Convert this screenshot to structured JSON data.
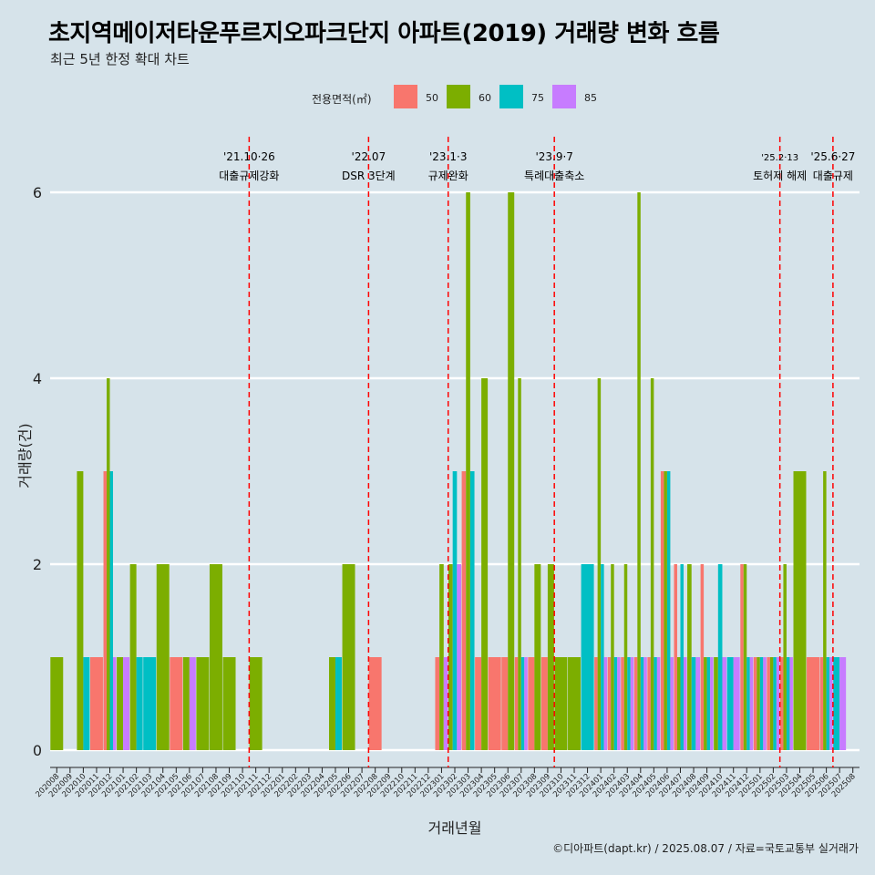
{
  "title": "초지역메이저타운푸르지오파크단지 아파트(2019) 거래량 변화 흐름",
  "subtitle": "최근 5년 한정 확대 차트",
  "caption": "©디아파트(dapt.kr) / 2025.08.07 / 자료=국토교통부 실거래가",
  "legend": {
    "title": "전용면적(㎡)",
    "items": [
      {
        "label": "50",
        "color": "#f8766d"
      },
      {
        "label": "60",
        "color": "#7cae00"
      },
      {
        "label": "75",
        "color": "#00bfc4"
      },
      {
        "label": "85",
        "color": "#c77cff"
      }
    ]
  },
  "chart_data": {
    "type": "bar",
    "xlabel": "거래년월",
    "ylabel": "거래량(건)",
    "ylim": [
      0,
      6.6
    ],
    "yticks": [
      0,
      2,
      4,
      6
    ],
    "grid": true,
    "legend_position": "top",
    "categories": [
      "202008",
      "202009",
      "202010",
      "202011",
      "202012",
      "202101",
      "202102",
      "202103",
      "202104",
      "202105",
      "202106",
      "202107",
      "202108",
      "202109",
      "202110",
      "202111",
      "202112",
      "202201",
      "202202",
      "202203",
      "202204",
      "202205",
      "202206",
      "202207",
      "202208",
      "202209",
      "202210",
      "202211",
      "202212",
      "202301",
      "202302",
      "202303",
      "202304",
      "202305",
      "202306",
      "202307",
      "202308",
      "202309",
      "202310",
      "202311",
      "202312",
      "202401",
      "202402",
      "202403",
      "202404",
      "202405",
      "202406",
      "202407",
      "202408",
      "202409",
      "202410",
      "202411",
      "202412",
      "202501",
      "202502",
      "202503",
      "202504",
      "202505",
      "202506",
      "202507",
      "202508"
    ],
    "series": [
      {
        "name": "50",
        "values": [
          0,
          0,
          0,
          1,
          3,
          0,
          0,
          0,
          0,
          1,
          0,
          0,
          0,
          0,
          0,
          0,
          0,
          0,
          0,
          0,
          0,
          0,
          0,
          0,
          1,
          0,
          0,
          0,
          0,
          1,
          0,
          3,
          1,
          1,
          1,
          1,
          1,
          1,
          0,
          0,
          0,
          1,
          1,
          1,
          1,
          1,
          3,
          2,
          0,
          2,
          0,
          0,
          2,
          1,
          1,
          1,
          0,
          1,
          1,
          0,
          0
        ]
      },
      {
        "name": "60",
        "values": [
          1,
          0,
          3,
          0,
          4,
          1,
          2,
          0,
          2,
          0,
          1,
          1,
          2,
          1,
          0,
          1,
          0,
          0,
          0,
          0,
          0,
          1,
          2,
          0,
          0,
          0,
          0,
          0,
          0,
          2,
          2,
          6,
          4,
          0,
          6,
          4,
          2,
          2,
          1,
          1,
          0,
          4,
          2,
          2,
          6,
          4,
          3,
          1,
          2,
          1,
          1,
          0,
          2,
          1,
          1,
          2,
          3,
          0,
          3,
          0,
          0
        ]
      },
      {
        "name": "75",
        "values": [
          0,
          0,
          1,
          0,
          3,
          0,
          1,
          1,
          0,
          0,
          0,
          0,
          0,
          0,
          0,
          0,
          0,
          0,
          0,
          0,
          0,
          1,
          0,
          0,
          0,
          0,
          0,
          0,
          0,
          0,
          3,
          3,
          0,
          0,
          0,
          1,
          0,
          0,
          0,
          0,
          2,
          2,
          1,
          1,
          1,
          1,
          3,
          2,
          1,
          1,
          2,
          1,
          1,
          1,
          1,
          1,
          0,
          0,
          1,
          1,
          0
        ]
      },
      {
        "name": "85",
        "values": [
          0,
          0,
          0,
          0,
          1,
          1,
          0,
          0,
          0,
          0,
          1,
          0,
          0,
          0,
          0,
          0,
          0,
          0,
          0,
          0,
          0,
          0,
          0,
          0,
          0,
          0,
          0,
          0,
          0,
          1,
          2,
          0,
          0,
          0,
          0,
          1,
          0,
          0,
          0,
          0,
          0,
          1,
          1,
          1,
          1,
          1,
          1,
          1,
          1,
          1,
          1,
          1,
          1,
          1,
          1,
          1,
          0,
          0,
          1,
          1,
          0
        ]
      }
    ],
    "events": [
      {
        "after": "202110",
        "date": "'21.10·26",
        "label": "대출규제강화"
      },
      {
        "after": "202207",
        "date": "'22.07",
        "label": "DSR 3단계"
      },
      {
        "after": "202301",
        "date": "'23.1·3",
        "label": "규제완화"
      },
      {
        "after": "202309",
        "date": "'23.9·7",
        "label": "특례대출축소"
      },
      {
        "after": "202502",
        "date": "'25.2·13",
        "label": "토허제 해제"
      },
      {
        "after": "202506",
        "date": "'25.6·27",
        "label": "대출규제"
      }
    ]
  }
}
